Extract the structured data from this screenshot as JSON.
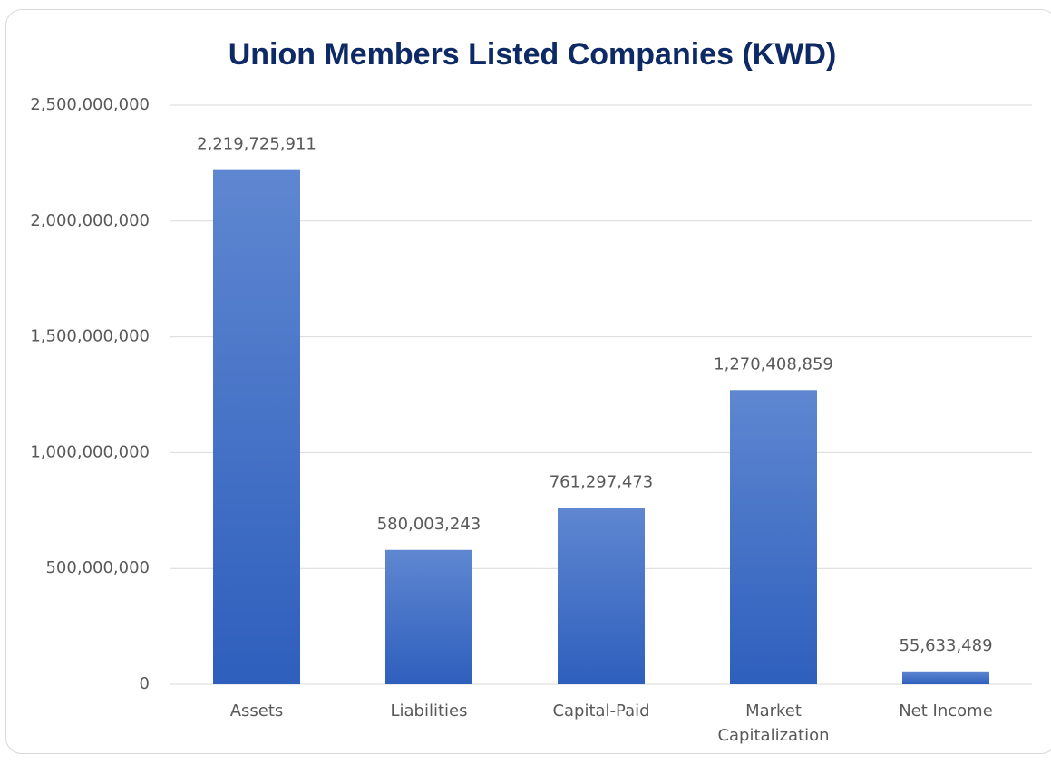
{
  "chart_data": {
    "type": "bar",
    "title": "Union Members Listed Companies (KWD)",
    "categories": [
      "Assets",
      "Liabilities",
      "Capital-Paid",
      "Market Capitalization",
      "Net Income"
    ],
    "values": [
      2219725911,
      580003243,
      761297473,
      1270408859,
      55633489
    ],
    "value_labels": [
      "2,219,725,911",
      "580,003,243",
      "761,297,473",
      "1,270,408,859",
      "55,633,489"
    ],
    "color": "#3b6cc7",
    "ylim": [
      0,
      2500000000
    ],
    "yticks": [
      0,
      {
        "value": 500000000,
        "label": "500,000,000"
      },
      {
        "value": 1000000000,
        "label": "1,000,000,000"
      },
      {
        "value": 1500000000,
        "label": "1,500,000,000"
      },
      {
        "value": 2000000000,
        "label": "2,000,000,000"
      },
      {
        "value": 2500000000,
        "label": "2,500,000,000"
      }
    ],
    "grid": true
  }
}
